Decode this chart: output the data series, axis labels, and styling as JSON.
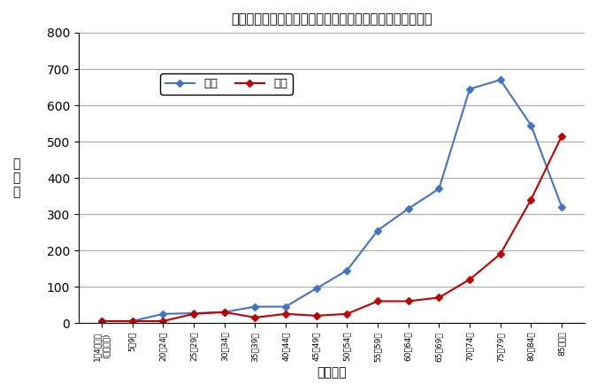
{
  "title": "性・年齢階級別の自宅住居死亡単身世帯者数（令和元年）",
  "xlabel": "年齢階級",
  "ylabel": "死\n亡\n数",
  "x_labels": [
    "1～4歳未満\n(乳幼児等)",
    "5～9歳",
    "20～24歳",
    "25～29歳",
    "30～34歳",
    "35～39歳",
    "40～44歳",
    "45～49歳",
    "50～54歳",
    "55～59歳",
    "60～64歳",
    "65～69歳",
    "70～74歳",
    "75～79歳",
    "80～84歳",
    "85歳以上"
  ],
  "male_values": [
    5,
    5,
    25,
    27,
    30,
    45,
    45,
    95,
    145,
    255,
    315,
    370,
    645,
    670,
    545,
    320
  ],
  "female_values": [
    5,
    5,
    5,
    25,
    30,
    15,
    25,
    20,
    25,
    60,
    60,
    70,
    120,
    190,
    340,
    515
  ],
  "male_color": "#4472C4",
  "female_color": "#C00000",
  "male_label": "男性",
  "female_label": "女性",
  "ylim": [
    0,
    800
  ],
  "yticks": [
    0,
    100,
    200,
    300,
    400,
    500,
    600,
    700,
    800
  ],
  "background_color": "#FFFFFF",
  "grid_color": "#AAAAAA"
}
